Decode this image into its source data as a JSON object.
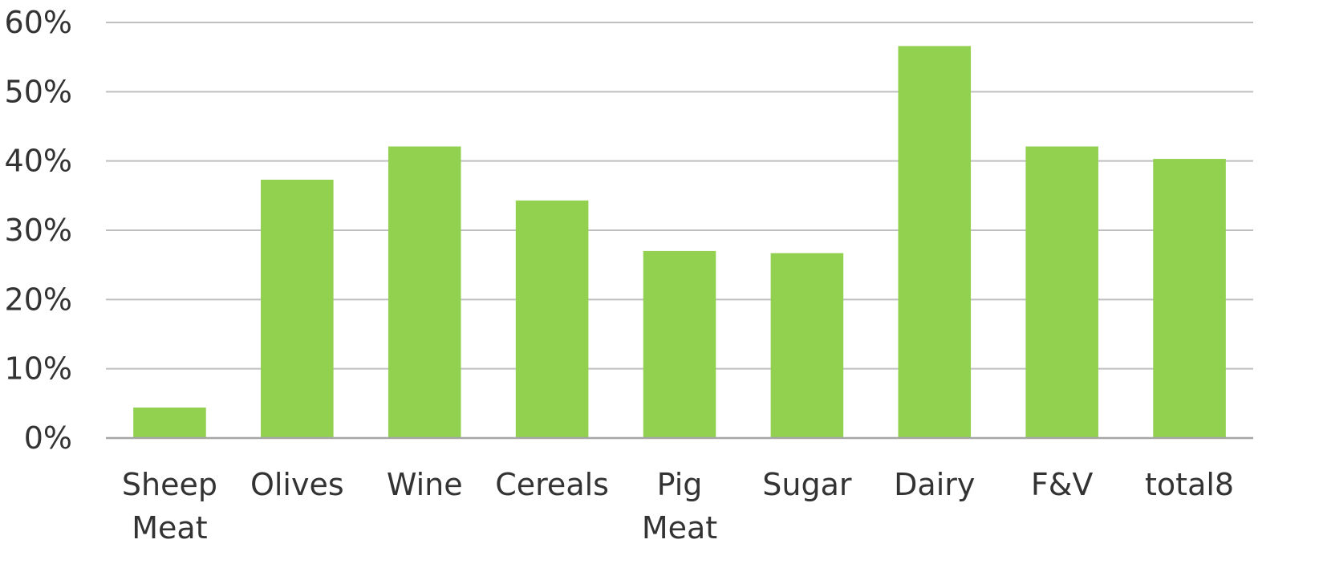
{
  "chart_data": {
    "type": "bar",
    "categories": [
      [
        "Sheep",
        "Meat"
      ],
      [
        "Olives"
      ],
      [
        "Wine"
      ],
      [
        "Cereals"
      ],
      [
        "Pig",
        "Meat"
      ],
      [
        "Sugar"
      ],
      [
        "Dairy"
      ],
      [
        "F&V"
      ],
      [
        "total8"
      ]
    ],
    "values": [
      4.4,
      37.3,
      42.1,
      34.3,
      27.0,
      26.7,
      56.6,
      42.1,
      40.3
    ],
    "ylim": [
      0,
      60
    ],
    "yticks": [
      0,
      10,
      20,
      30,
      40,
      50,
      60
    ],
    "ytick_labels": [
      "0%",
      "10%",
      "20%",
      "30%",
      "40%",
      "50%",
      "60%"
    ],
    "title": "",
    "xlabel": "",
    "ylabel": "",
    "grid": true,
    "bar_color": "#92d050"
  }
}
